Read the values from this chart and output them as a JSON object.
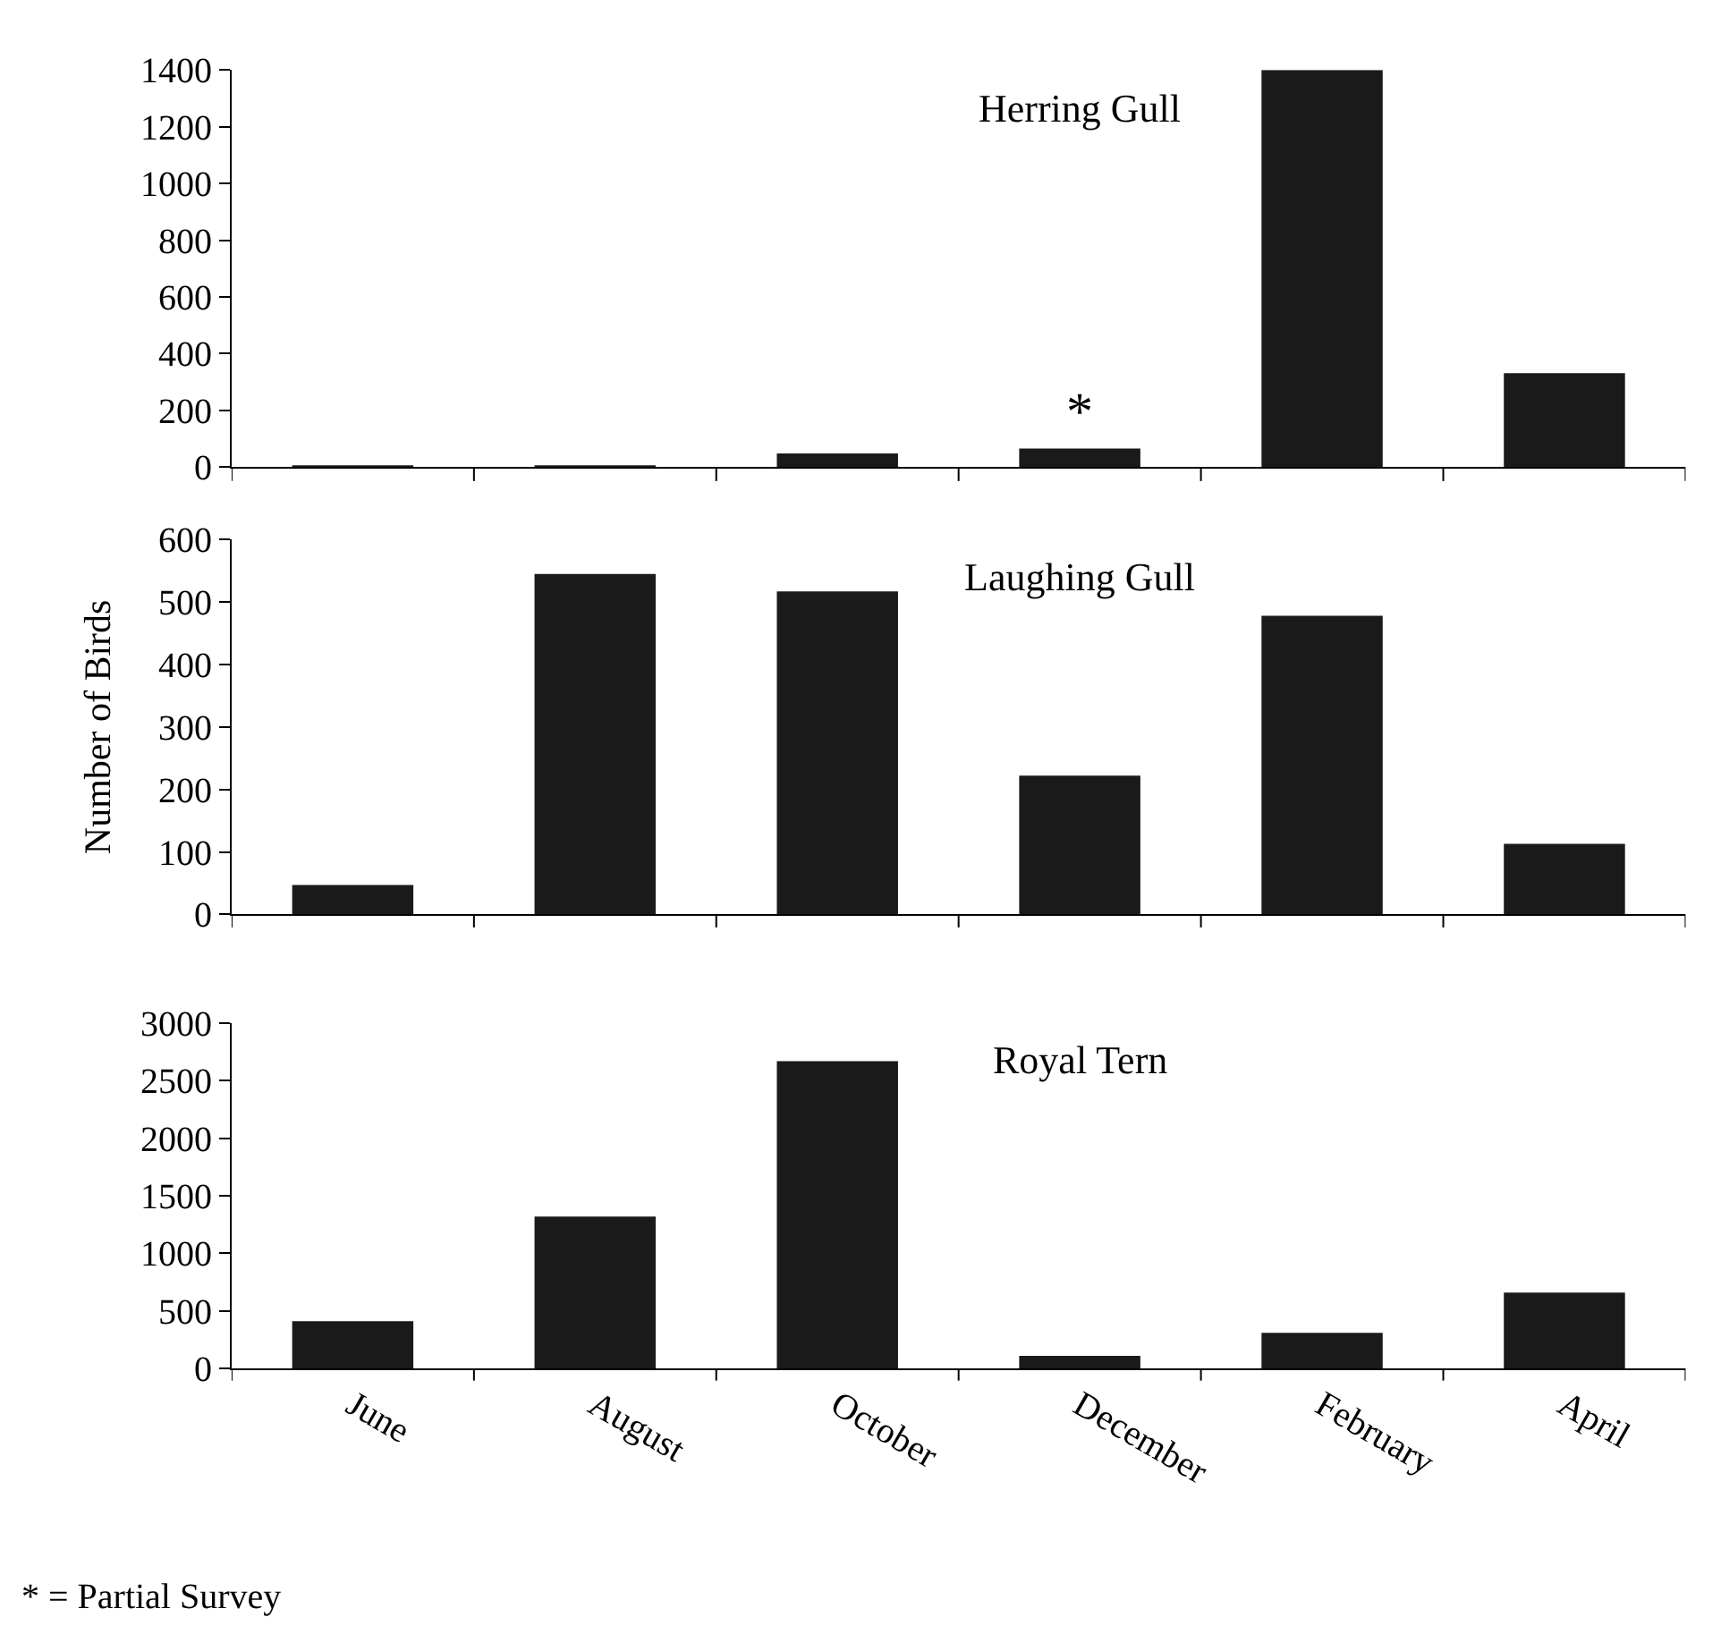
{
  "chart_data": [
    {
      "type": "bar",
      "title": "Herring Gull",
      "categories": [
        "June",
        "August",
        "October",
        "December",
        "February",
        "April"
      ],
      "values": [
        3,
        3,
        48,
        66,
        1400,
        331
      ],
      "color": "#1a1a1a",
      "ylim": [
        0,
        1400
      ],
      "yticks": [
        0,
        200,
        400,
        600,
        800,
        1000,
        1200,
        1400
      ],
      "tick_labels": "y",
      "annotations": [
        {
          "text": "*",
          "x": "December",
          "y": 66
        }
      ]
    },
    {
      "type": "bar",
      "title": "Laughing Gull",
      "ylabel": "Number of Birds",
      "categories": [
        "June",
        "August",
        "October",
        "December",
        "February",
        "April"
      ],
      "values": [
        47,
        545,
        517,
        222,
        478,
        113
      ],
      "color": "#1a1a1a",
      "ylim": [
        0,
        600
      ],
      "yticks": [
        0,
        100,
        200,
        300,
        400,
        500,
        600
      ],
      "tick_labels": "y"
    },
    {
      "type": "bar",
      "title": "Royal Tern",
      "categories": [
        "June",
        "August",
        "October",
        "December",
        "February",
        "April"
      ],
      "values": [
        410,
        1320,
        2670,
        110,
        310,
        660
      ],
      "color": "#1a1a1a",
      "ylim": [
        0,
        3000
      ],
      "yticks": [
        0,
        500,
        1000,
        1500,
        2000,
        2500,
        3000
      ],
      "annotations": [
        "* = Partial Survey"
      ]
    }
  ]
}
